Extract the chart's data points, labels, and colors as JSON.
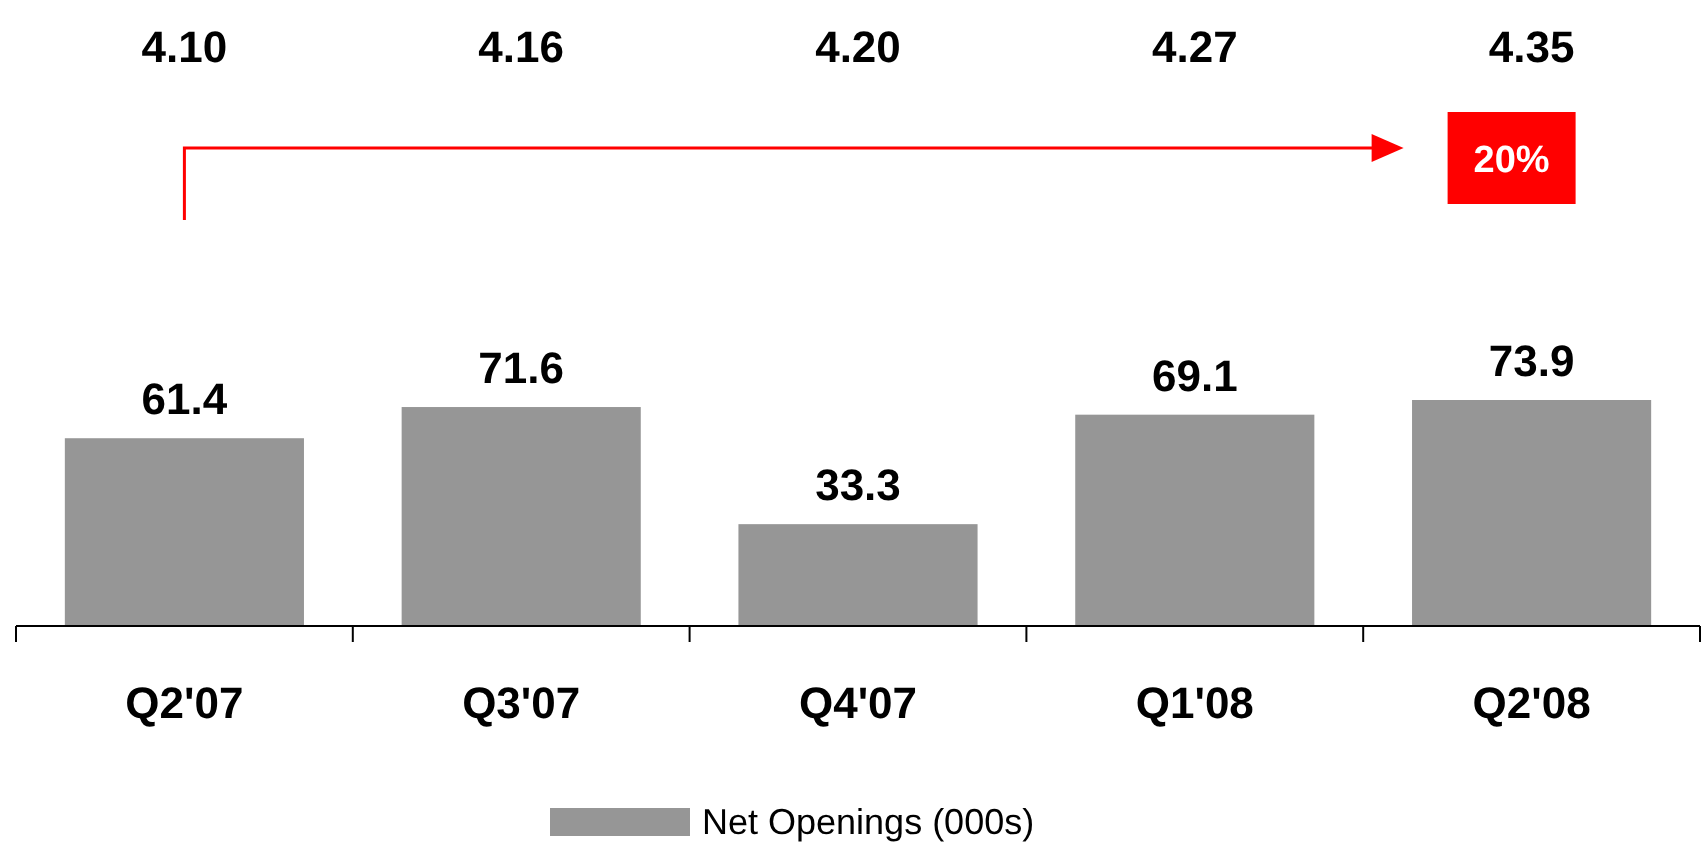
{
  "chart_data": {
    "type": "bar",
    "categories": [
      "Q2'07",
      "Q3'07",
      "Q4'07",
      "Q1'08",
      "Q2'08"
    ],
    "series": [
      {
        "name": "Net Openings (000s)",
        "color": "#969696",
        "values": [
          61.4,
          71.6,
          33.3,
          69.1,
          73.9
        ]
      }
    ],
    "data_labels": true,
    "legend": "bottom",
    "annotations": [
      "4.10",
      "4.16",
      "4.20",
      "4.27",
      "4.35",
      "20%"
    ]
  }
}
